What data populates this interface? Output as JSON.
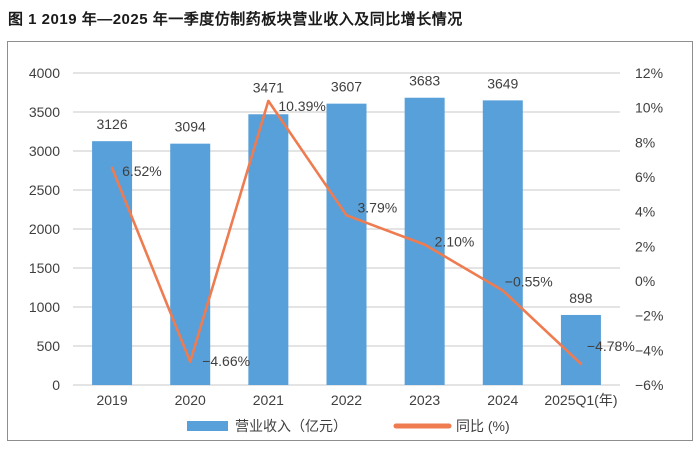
{
  "figure_title": "图 1  2019 年—2025 年一季度仿制药板块营业收入及同比增长情况",
  "chart_data": {
    "type": "bar",
    "combo": "bar+line",
    "title": "2019 年—2025 年一季度仿制药板块营业收入及同比增长情况",
    "categories": [
      "2019",
      "2020",
      "2021",
      "2022",
      "2023",
      "2024",
      "2025Q1(年)"
    ],
    "series": [
      {
        "name": "营业收入（亿元）",
        "type": "bar",
        "axis": "left",
        "values": [
          3126,
          3094,
          3471,
          3607,
          3683,
          3649,
          898
        ],
        "labels": [
          "3126",
          "3094",
          "3471",
          "3607",
          "3683",
          "3649",
          "898"
        ]
      },
      {
        "name": "同比 (%)",
        "type": "line",
        "axis": "right",
        "values": [
          6.52,
          -4.66,
          10.39,
          3.79,
          2.1,
          -0.55,
          -4.78
        ],
        "labels": [
          "6.52%",
          "−4.66%",
          "10.39%",
          "3.79%",
          "2.10%",
          "−0.55%",
          "−4.78%"
        ]
      }
    ],
    "left_axis": {
      "min": 0,
      "max": 4000,
      "step": 500,
      "ticks": [
        "4000",
        "3500",
        "3000",
        "2500",
        "2000",
        "1500",
        "1000",
        "500",
        "0"
      ]
    },
    "right_axis": {
      "min": -6,
      "max": 12,
      "step": 2,
      "ticks": [
        "12%",
        "10%",
        "8%",
        "6%",
        "4%",
        "2%",
        "0%",
        "−2%",
        "−4%",
        "−6%"
      ]
    },
    "legend": [
      {
        "label": "营业收入（亿元）",
        "marker": "square"
      },
      {
        "label": "同比 (%)",
        "marker": "line"
      }
    ],
    "grid": "horizontal",
    "legend_position": "bottom"
  },
  "colors": {
    "bar": "#58A0D9",
    "line": "#EF7B50",
    "grid": "#C8C8C8",
    "tick_text": "#3F3F3F",
    "label_text": "#3F3F3F",
    "frame_border": "#8E8E8E",
    "background": "#FFFFFF"
  }
}
